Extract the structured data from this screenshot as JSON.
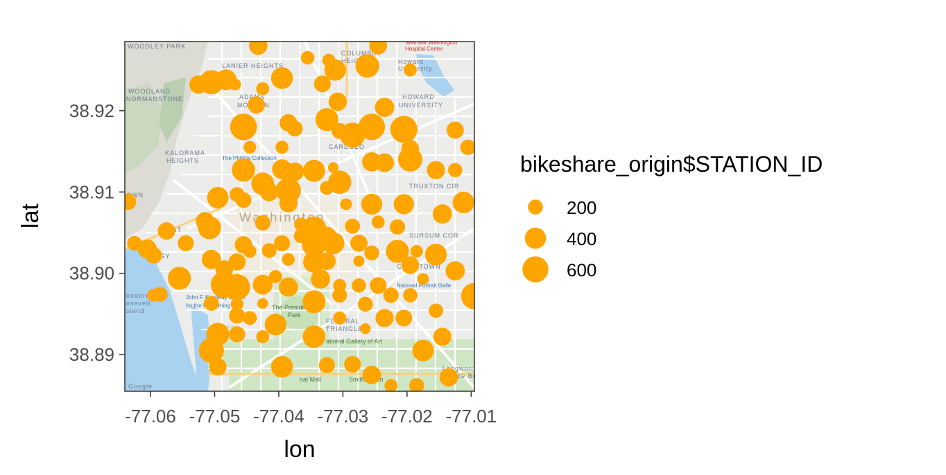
{
  "chart_data": {
    "type": "scatter",
    "title": "",
    "xlabel": "lon",
    "ylabel": "lat",
    "xlim": [
      -77.064,
      -77.0095
    ],
    "ylim": [
      38.8855,
      38.9285
    ],
    "x_ticks": [
      -77.06,
      -77.05,
      -77.04,
      -77.03,
      -77.02,
      -77.01
    ],
    "x_tick_labels": [
      "-77.06",
      "-77.05",
      "-77.04",
      "-77.03",
      "-77.02",
      "-77.01"
    ],
    "y_ticks": [
      38.89,
      38.9,
      38.91,
      38.92
    ],
    "y_tick_labels": [
      "38.89",
      "38.90",
      "38.91",
      "38.92"
    ],
    "background": "basemap (Google Maps, Washington DC)",
    "legend": {
      "title": "bikeshare_origin$STATION_ID",
      "placement": "right",
      "entries": [
        {
          "label": "200",
          "value": 200
        },
        {
          "label": "400",
          "value": 400
        },
        {
          "label": "600",
          "value": 600
        }
      ]
    },
    "point_color": "#FFA500",
    "size_range": [
      4,
      680
    ],
    "points": [
      {
        "lon": -77.0505,
        "lat": 38.9235,
        "size": 520
      },
      {
        "lon": -77.0482,
        "lat": 38.9238,
        "size": 380
      },
      {
        "lon": -77.0525,
        "lat": 38.9232,
        "size": 300
      },
      {
        "lon": -77.0468,
        "lat": 38.9232,
        "size": 120
      },
      {
        "lon": -77.0432,
        "lat": 38.928,
        "size": 300
      },
      {
        "lon": -77.0395,
        "lat": 38.924,
        "size": 420
      },
      {
        "lon": -77.0425,
        "lat": 38.9227,
        "size": 150
      },
      {
        "lon": -77.0435,
        "lat": 38.9207,
        "size": 260
      },
      {
        "lon": -77.0355,
        "lat": 38.9265,
        "size": 160
      },
      {
        "lon": -77.0322,
        "lat": 38.9262,
        "size": 150
      },
      {
        "lon": -77.0312,
        "lat": 38.925,
        "size": 410
      },
      {
        "lon": -77.0332,
        "lat": 38.9233,
        "size": 250
      },
      {
        "lon": -77.0262,
        "lat": 38.9255,
        "size": 500
      },
      {
        "lon": -77.0245,
        "lat": 38.928,
        "size": 280
      },
      {
        "lon": -77.0195,
        "lat": 38.925,
        "size": 150
      },
      {
        "lon": -77.0308,
        "lat": 38.9211,
        "size": 300
      },
      {
        "lon": -77.0235,
        "lat": 38.9204,
        "size": 330
      },
      {
        "lon": -77.0325,
        "lat": 38.9189,
        "size": 470
      },
      {
        "lon": -77.0385,
        "lat": 38.9185,
        "size": 270
      },
      {
        "lon": -77.0375,
        "lat": 38.9178,
        "size": 220
      },
      {
        "lon": -77.0455,
        "lat": 38.918,
        "size": 630
      },
      {
        "lon": -77.0285,
        "lat": 38.917,
        "size": 560
      },
      {
        "lon": -77.0255,
        "lat": 38.918,
        "size": 620
      },
      {
        "lon": -77.0205,
        "lat": 38.9177,
        "size": 650
      },
      {
        "lon": -77.0125,
        "lat": 38.9176,
        "size": 260
      },
      {
        "lon": -77.0305,
        "lat": 38.9175,
        "size": 230
      },
      {
        "lon": -77.0395,
        "lat": 38.9155,
        "size": 150
      },
      {
        "lon": -77.0445,
        "lat": 38.9155,
        "size": 140
      },
      {
        "lon": -77.0195,
        "lat": 38.9153,
        "size": 280
      },
      {
        "lon": -77.0105,
        "lat": 38.9155,
        "size": 210
      },
      {
        "lon": -77.0195,
        "lat": 38.914,
        "size": 520
      },
      {
        "lon": -77.0235,
        "lat": 38.9136,
        "size": 310
      },
      {
        "lon": -77.0395,
        "lat": 38.9128,
        "size": 350
      },
      {
        "lon": -77.0375,
        "lat": 38.9125,
        "size": 300
      },
      {
        "lon": -77.0345,
        "lat": 38.9126,
        "size": 430
      },
      {
        "lon": -77.0455,
        "lat": 38.9127,
        "size": 480
      },
      {
        "lon": -77.0315,
        "lat": 38.913,
        "size": 100
      },
      {
        "lon": -77.0255,
        "lat": 38.9137,
        "size": 330
      },
      {
        "lon": -77.0155,
        "lat": 38.9127,
        "size": 290
      },
      {
        "lon": -77.0125,
        "lat": 38.9127,
        "size": 180
      },
      {
        "lon": -77.0425,
        "lat": 38.911,
        "size": 460
      },
      {
        "lon": -77.0375,
        "lat": 38.9122,
        "size": 170
      },
      {
        "lon": -77.0385,
        "lat": 38.9102,
        "size": 560
      },
      {
        "lon": -77.0415,
        "lat": 38.91,
        "size": 300
      },
      {
        "lon": -77.0305,
        "lat": 38.9112,
        "size": 480
      },
      {
        "lon": -77.0325,
        "lat": 38.9105,
        "size": 170
      },
      {
        "lon": -77.0495,
        "lat": 38.9093,
        "size": 410
      },
      {
        "lon": -77.0465,
        "lat": 38.9097,
        "size": 190
      },
      {
        "lon": -77.0455,
        "lat": 38.909,
        "size": 220
      },
      {
        "lon": -77.0385,
        "lat": 38.9086,
        "size": 290
      },
      {
        "lon": -77.0295,
        "lat": 38.9085,
        "size": 120
      },
      {
        "lon": -77.0255,
        "lat": 38.9085,
        "size": 390
      },
      {
        "lon": -77.0205,
        "lat": 38.9085,
        "size": 360
      },
      {
        "lon": -77.0112,
        "lat": 38.9087,
        "size": 420
      },
      {
        "lon": -77.0635,
        "lat": 38.9088,
        "size": 240
      },
      {
        "lon": -77.0145,
        "lat": 38.9073,
        "size": 330
      },
      {
        "lon": -77.0515,
        "lat": 38.9064,
        "size": 300
      },
      {
        "lon": -77.0508,
        "lat": 38.9056,
        "size": 470
      },
      {
        "lon": -77.0425,
        "lat": 38.9062,
        "size": 210
      },
      {
        "lon": -77.0365,
        "lat": 38.906,
        "size": 170
      },
      {
        "lon": -77.0345,
        "lat": 38.9055,
        "size": 520
      },
      {
        "lon": -77.0285,
        "lat": 38.9058,
        "size": 200
      },
      {
        "lon": -77.0245,
        "lat": 38.9063,
        "size": 150
      },
      {
        "lon": -77.0215,
        "lat": 38.9057,
        "size": 210
      },
      {
        "lon": -77.0575,
        "lat": 38.9052,
        "size": 270
      },
      {
        "lon": -77.0365,
        "lat": 38.9046,
        "size": 190
      },
      {
        "lon": -77.0325,
        "lat": 38.9045,
        "size": 350
      },
      {
        "lon": -77.0545,
        "lat": 38.9037,
        "size": 230
      },
      {
        "lon": -77.0625,
        "lat": 38.9037,
        "size": 190
      },
      {
        "lon": -77.0605,
        "lat": 38.903,
        "size": 320
      },
      {
        "lon": -77.0595,
        "lat": 38.9022,
        "size": 240
      },
      {
        "lon": -77.0455,
        "lat": 38.9035,
        "size": 270
      },
      {
        "lon": -77.0415,
        "lat": 38.9028,
        "size": 190
      },
      {
        "lon": -77.0395,
        "lat": 38.9037,
        "size": 230
      },
      {
        "lon": -77.0345,
        "lat": 38.9035,
        "size": 510
      },
      {
        "lon": -77.0315,
        "lat": 38.9037,
        "size": 430
      },
      {
        "lon": -77.0275,
        "lat": 38.9037,
        "size": 260
      },
      {
        "lon": -77.0255,
        "lat": 38.9025,
        "size": 200
      },
      {
        "lon": -77.0215,
        "lat": 38.9027,
        "size": 470
      },
      {
        "lon": -77.0185,
        "lat": 38.9027,
        "size": 140
      },
      {
        "lon": -77.0155,
        "lat": 38.9023,
        "size": 420
      },
      {
        "lon": -77.0505,
        "lat": 38.9017,
        "size": 330
      },
      {
        "lon": -77.0465,
        "lat": 38.9014,
        "size": 260
      },
      {
        "lon": -77.0485,
        "lat": 38.9005,
        "size": 280
      },
      {
        "lon": -77.0445,
        "lat": 38.9027,
        "size": 150
      },
      {
        "lon": -77.0385,
        "lat": 38.9017,
        "size": 140
      },
      {
        "lon": -77.0345,
        "lat": 38.9014,
        "size": 420
      },
      {
        "lon": -77.0325,
        "lat": 38.9015,
        "size": 280
      },
      {
        "lon": -77.0275,
        "lat": 38.9015,
        "size": 110
      },
      {
        "lon": -77.0195,
        "lat": 38.901,
        "size": 280
      },
      {
        "lon": -77.0555,
        "lat": 38.8994,
        "size": 470
      },
      {
        "lon": -77.0485,
        "lat": 38.8986,
        "size": 640
      },
      {
        "lon": -77.0465,
        "lat": 38.8983,
        "size": 600
      },
      {
        "lon": -77.0425,
        "lat": 38.8986,
        "size": 350
      },
      {
        "lon": -77.0405,
        "lat": 38.8996,
        "size": 150
      },
      {
        "lon": -77.0385,
        "lat": 38.8983,
        "size": 330
      },
      {
        "lon": -77.0335,
        "lat": 38.8993,
        "size": 330
      },
      {
        "lon": -77.0305,
        "lat": 38.8985,
        "size": 150
      },
      {
        "lon": -77.0275,
        "lat": 38.8985,
        "size": 180
      },
      {
        "lon": -77.0245,
        "lat": 38.8985,
        "size": 250
      },
      {
        "lon": -77.0175,
        "lat": 38.8993,
        "size": 120
      },
      {
        "lon": -77.0125,
        "lat": 38.9003,
        "size": 330
      },
      {
        "lon": -77.0095,
        "lat": 38.8972,
        "size": 620
      },
      {
        "lon": -77.0585,
        "lat": 38.8974,
        "size": 200
      },
      {
        "lon": -77.0505,
        "lat": 38.8963,
        "size": 200
      },
      {
        "lon": -77.0465,
        "lat": 38.8962,
        "size": 140
      },
      {
        "lon": -77.0425,
        "lat": 38.8963,
        "size": 100
      },
      {
        "lon": -77.0345,
        "lat": 38.8965,
        "size": 470
      },
      {
        "lon": -77.0305,
        "lat": 38.8973,
        "size": 190
      },
      {
        "lon": -77.0265,
        "lat": 38.8962,
        "size": 200
      },
      {
        "lon": -77.0225,
        "lat": 38.8973,
        "size": 210
      },
      {
        "lon": -77.0195,
        "lat": 38.8973,
        "size": 180
      },
      {
        "lon": -77.0155,
        "lat": 38.8954,
        "size": 180
      },
      {
        "lon": -77.0445,
        "lat": 38.8945,
        "size": 170
      },
      {
        "lon": -77.0465,
        "lat": 38.8948,
        "size": 230
      },
      {
        "lon": -77.0405,
        "lat": 38.8937,
        "size": 420
      },
      {
        "lon": -77.0305,
        "lat": 38.8945,
        "size": 150
      },
      {
        "lon": -77.0235,
        "lat": 38.8945,
        "size": 290
      },
      {
        "lon": -77.0205,
        "lat": 38.8945,
        "size": 250
      },
      {
        "lon": -77.0495,
        "lat": 38.8925,
        "size": 470
      },
      {
        "lon": -77.0465,
        "lat": 38.8925,
        "size": 230
      },
      {
        "lon": -77.0425,
        "lat": 38.8922,
        "size": 150
      },
      {
        "lon": -77.0345,
        "lat": 38.8922,
        "size": 450
      },
      {
        "lon": -77.0265,
        "lat": 38.8932,
        "size": 100
      },
      {
        "lon": -77.0145,
        "lat": 38.8922,
        "size": 290
      },
      {
        "lon": -77.0505,
        "lat": 38.8905,
        "size": 560
      },
      {
        "lon": -77.0495,
        "lat": 38.8885,
        "size": 270
      },
      {
        "lon": -77.0395,
        "lat": 38.8885,
        "size": 420
      },
      {
        "lon": -77.0325,
        "lat": 38.8887,
        "size": 230
      },
      {
        "lon": -77.0285,
        "lat": 38.8888,
        "size": 250
      },
      {
        "lon": -77.0255,
        "lat": 38.8875,
        "size": 300
      },
      {
        "lon": -77.0175,
        "lat": 38.8905,
        "size": 410
      },
      {
        "lon": -77.0135,
        "lat": 38.8872,
        "size": 300
      },
      {
        "lon": -77.0185,
        "lat": 38.8862,
        "size": 200
      },
      {
        "lon": -77.0225,
        "lat": 38.8862,
        "size": 150
      },
      {
        "lon": -77.0595,
        "lat": 38.8973,
        "size": 150
      }
    ]
  }
}
